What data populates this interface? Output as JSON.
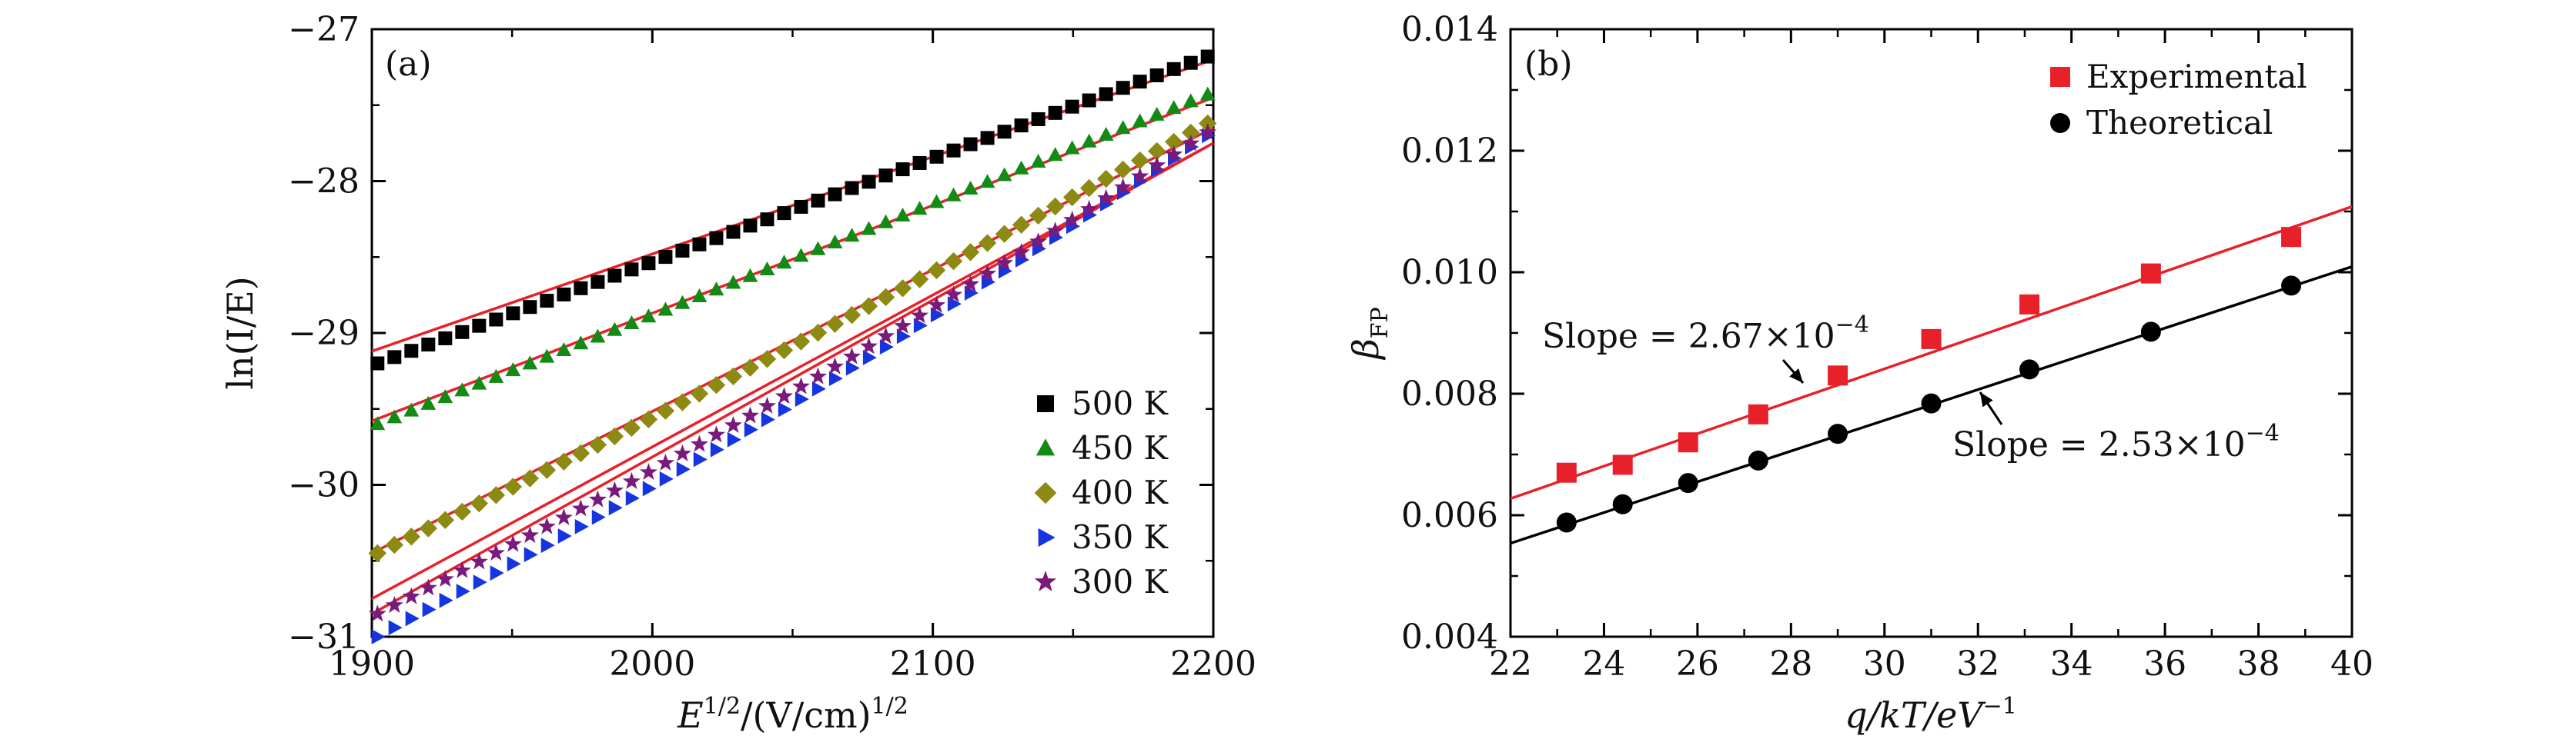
{
  "chart_data": [
    {
      "panel": "(a)",
      "type": "scatter",
      "xlabel_base": "E",
      "xlabel_sup": "1/2",
      "xlabel_unit": "/(V/cm)",
      "xlabel_unit_sup": "1/2",
      "ylabel": "ln(I/E)",
      "xlim": [
        1900,
        2200
      ],
      "ylim": [
        -31,
        -27
      ],
      "xticks": [
        1900,
        2000,
        2100,
        2200
      ],
      "yticks": [
        -31,
        -30,
        -29,
        -28,
        -27
      ],
      "ytick_labels": [
        "−31",
        "−30",
        "−29",
        "−28",
        "−27"
      ],
      "legend_position": "lower-right",
      "series": [
        {
          "name": "500 K",
          "marker": "square",
          "color": "#000000",
          "x_start": 1902,
          "x_end": 2198,
          "n_points": 50,
          "y_start": -29.2,
          "y_end": -27.18,
          "fit": [
            -29.12,
            -27.2
          ]
        },
        {
          "name": "450 K",
          "marker": "triangle",
          "color": "#138a13",
          "x_start": 1902,
          "x_end": 2198,
          "n_points": 50,
          "y_start": -29.6,
          "y_end": -27.43,
          "fit": [
            -29.58,
            -27.45
          ]
        },
        {
          "name": "400 K",
          "marker": "diamond",
          "color": "#8d8a14",
          "x_start": 1902,
          "x_end": 2198,
          "n_points": 50,
          "y_start": -30.45,
          "y_end": -27.62,
          "fit": [
            -30.45,
            -27.65
          ]
        },
        {
          "name": "350 K",
          "marker": "triangle-right",
          "color": "#1535e0",
          "x_start": 1902,
          "x_end": 2198,
          "n_points": 50,
          "y_start": -31.0,
          "y_end": -27.7,
          "fit": [
            -30.75,
            -27.75
          ]
        },
        {
          "name": "300 K",
          "marker": "star",
          "color": "#7a1a7a",
          "x_start": 1902,
          "x_end": 2198,
          "n_points": 50,
          "y_start": -30.85,
          "y_end": -27.68,
          "fit": [
            -30.85,
            -27.75
          ]
        }
      ],
      "fit_color": "#e8202a"
    },
    {
      "panel": "(b)",
      "type": "scatter",
      "xlabel": "q/kT/eV",
      "xlabel_sup": "−1",
      "ylabel": "β",
      "ylabel_sub": "FP",
      "xlim": [
        22,
        40
      ],
      "ylim": [
        0.004,
        0.014
      ],
      "xticks": [
        22,
        24,
        26,
        28,
        30,
        32,
        34,
        36,
        38,
        40
      ],
      "yticks": [
        0.004,
        0.006,
        0.008,
        0.01,
        0.012,
        0.014
      ],
      "ytick_labels": [
        "0.004",
        "0.006",
        "0.008",
        "0.010",
        "0.012",
        "0.014"
      ],
      "legend_position": "top-right",
      "series": [
        {
          "name": "Experimental",
          "marker": "square",
          "color": "#e8202a",
          "x": [
            23.2,
            24.4,
            25.8,
            27.3,
            29.0,
            31.0,
            33.1,
            35.7,
            38.7
          ],
          "y": [
            0.0067,
            0.00683,
            0.0072,
            0.00766,
            0.0083,
            0.0089,
            0.00947,
            0.00998,
            0.01058
          ],
          "fit": {
            "slope": 0.000267,
            "intercept": 0.0004
          }
        },
        {
          "name": "Theoretical",
          "marker": "circle",
          "color": "#000000",
          "x": [
            23.2,
            24.4,
            25.8,
            27.3,
            29.0,
            31.0,
            33.1,
            35.7,
            38.7
          ],
          "y": [
            0.00588,
            0.00618,
            0.00653,
            0.0069,
            0.00734,
            0.00784,
            0.0084,
            0.00902,
            0.00978
          ],
          "fit": {
            "slope": 0.000253,
            "intercept": -2.8e-05
          }
        }
      ],
      "annotations": [
        {
          "text": "Slope = 2.67×10",
          "exp": "−4",
          "series": "Experimental"
        },
        {
          "text": "Slope = 2.53×10",
          "exp": "−4",
          "series": "Theoretical"
        }
      ]
    }
  ]
}
